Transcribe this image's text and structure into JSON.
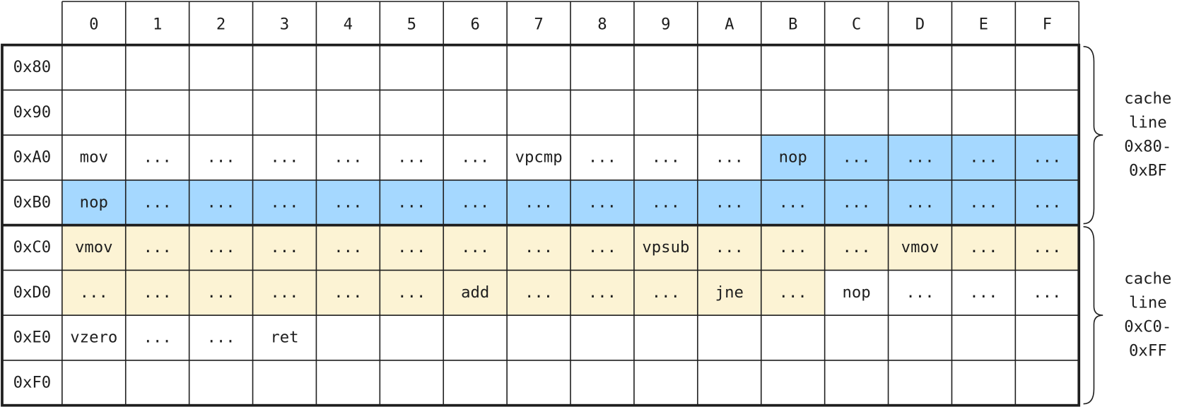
{
  "table": {
    "columns": [
      "0",
      "1",
      "2",
      "3",
      "4",
      "5",
      "6",
      "7",
      "8",
      "9",
      "A",
      "B",
      "C",
      "D",
      "E",
      "F"
    ],
    "rows": [
      {
        "label": "0x80",
        "cells": [
          null,
          null,
          null,
          null,
          null,
          null,
          null,
          null,
          null,
          null,
          null,
          null,
          null,
          null,
          null,
          null
        ]
      },
      {
        "label": "0x90",
        "cells": [
          null,
          null,
          null,
          null,
          null,
          null,
          null,
          null,
          null,
          null,
          null,
          null,
          null,
          null,
          null,
          null
        ]
      },
      {
        "label": "0xA0",
        "cells": [
          "mov",
          "...",
          "...",
          "...",
          "...",
          "...",
          "...",
          "vpcmp",
          "...",
          "...",
          "...",
          "nop",
          "...",
          "...",
          "...",
          "..."
        ]
      },
      {
        "label": "0xB0",
        "cells": [
          "nop",
          "...",
          "...",
          "...",
          "...",
          "...",
          "...",
          "...",
          "...",
          "...",
          "...",
          "...",
          "...",
          "...",
          "...",
          "..."
        ]
      },
      {
        "label": "0xC0",
        "cells": [
          "vmov",
          "...",
          "...",
          "...",
          "...",
          "...",
          "...",
          "...",
          "...",
          "vpsub",
          "...",
          "...",
          "...",
          "vmov",
          "...",
          "..."
        ]
      },
      {
        "label": "0xD0",
        "cells": [
          "...",
          "...",
          "...",
          "...",
          "...",
          "...",
          "add",
          "...",
          "...",
          "...",
          "jne",
          "...",
          "nop",
          "...",
          "...",
          "..."
        ]
      },
      {
        "label": "0xE0",
        "cells": [
          "vzero",
          "...",
          "...",
          "ret",
          null,
          null,
          null,
          null,
          null,
          null,
          null,
          null,
          null,
          null,
          null,
          null
        ]
      },
      {
        "label": "0xF0",
        "cells": [
          null,
          null,
          null,
          null,
          null,
          null,
          null,
          null,
          null,
          null,
          null,
          null,
          null,
          null,
          null,
          null
        ]
      }
    ]
  },
  "annotations": [
    {
      "lines": [
        "cache",
        "line",
        "0x80-",
        "0xBF"
      ]
    },
    {
      "lines": [
        "cache",
        "line",
        "0xC0-",
        "0xFF"
      ]
    }
  ]
}
